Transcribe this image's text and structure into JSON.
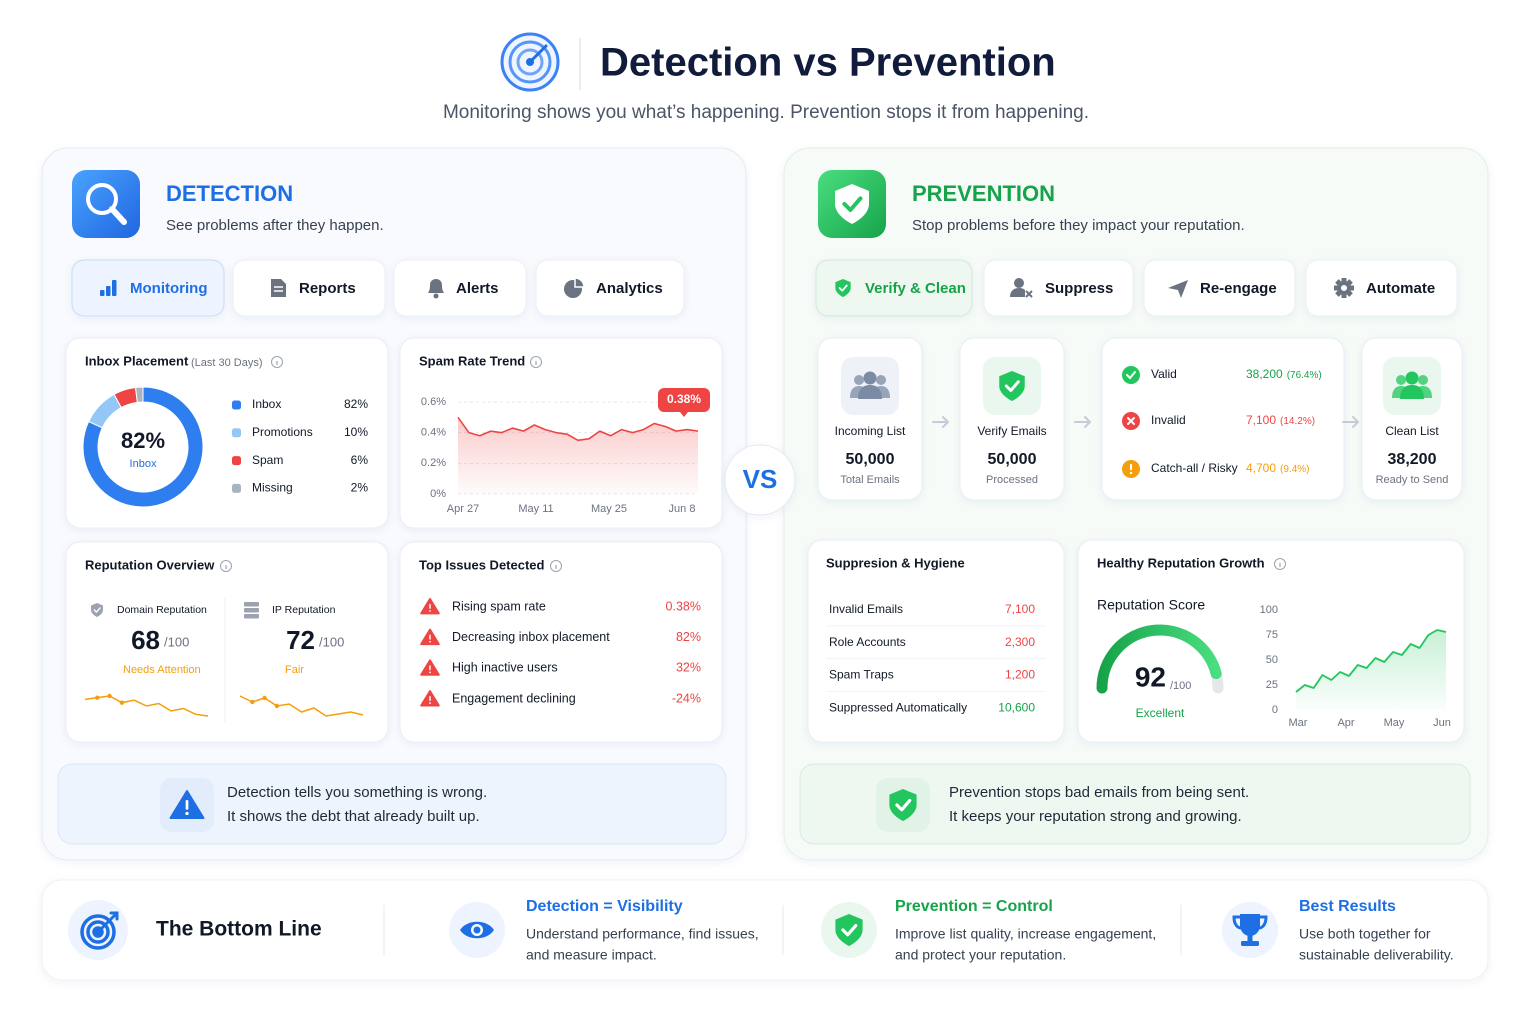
{
  "header": {
    "title": "Detection vs Prevention",
    "subtitle": "Monitoring shows you what’s happening. Prevention stops it from happening."
  },
  "vs": "VS",
  "detection": {
    "title": "DETECTION",
    "subtitle": "See problems after they happen.",
    "tabs": [
      "Monitoring",
      "Reports",
      "Alerts",
      "Analytics"
    ],
    "inbox_placement": {
      "type": "pie",
      "title": "Inbox Placement",
      "period": "(Last 30 Days)",
      "center_label": "Inbox",
      "categories": [
        "Inbox",
        "Promotions",
        "Spam",
        "Missing"
      ],
      "values": [
        82,
        10,
        6,
        2
      ],
      "value_labels": [
        "82%",
        "10%",
        "6%",
        "2%"
      ],
      "colors": [
        "#2f7ef0",
        "#93c8f6",
        "#ef4444",
        "#a8b3c4"
      ]
    },
    "spam_trend": {
      "type": "line",
      "title": "Spam Rate Trend",
      "x_labels": [
        "Apr 27",
        "May 11",
        "May 25",
        "Jun 8"
      ],
      "values": [
        0.5,
        0.4,
        0.38,
        0.41,
        0.4,
        0.43,
        0.41,
        0.45,
        0.42,
        0.4,
        0.39,
        0.35,
        0.36,
        0.41,
        0.38,
        0.42,
        0.4,
        0.42,
        0.46,
        0.44,
        0.41,
        0.42,
        0.41
      ],
      "color": "#ef4444",
      "ylim": [
        0,
        0.6
      ],
      "yticks": [
        {
          "value": 0,
          "label": "0%"
        },
        {
          "value": 0.2,
          "label": "0.2%"
        },
        {
          "value": 0.4,
          "label": "0.4%"
        },
        {
          "value": 0.6,
          "label": "0.6%"
        }
      ],
      "callout": "0.38%"
    },
    "reputation": {
      "title": "Reputation Overview",
      "items": [
        {
          "name": "Domain Reputation",
          "score": 68,
          "max": "/100",
          "status": "Needs Attention",
          "trend": [
            5,
            5.2,
            5.4,
            4.6,
            4.9,
            4.2,
            4.5,
            3.6,
            3.9,
            3.2,
            3
          ]
        },
        {
          "name": "IP Reputation",
          "score": 72,
          "max": "/100",
          "status": "Fair",
          "trend": [
            5.4,
            4.8,
            5.2,
            4.4,
            4.6,
            3.8,
            4.2,
            3.4,
            3.6,
            3.8,
            3.5
          ]
        }
      ]
    },
    "issues": {
      "title": "Top Issues Detected",
      "items": [
        {
          "name": "Rising spam rate",
          "value": "0.38%"
        },
        {
          "name": "Decreasing inbox placement",
          "value": "82%"
        },
        {
          "name": "High inactive users",
          "value": "32%"
        },
        {
          "name": "Engagement declining",
          "value": "-24%"
        }
      ]
    },
    "note": [
      "Detection tells you something is wrong.",
      "It shows the debt that already built up."
    ]
  },
  "prevention": {
    "title": "PREVENTION",
    "subtitle": "Stop problems before they impact your reputation.",
    "tabs": [
      "Verify & Clean",
      "Suppress",
      "Re-engage",
      "Automate"
    ],
    "flow": [
      {
        "label": "Incoming List",
        "value": "50,000",
        "caption": "Total Emails"
      },
      {
        "label": "Verify Emails",
        "value": "50,000",
        "caption": "Processed"
      }
    ],
    "results": [
      {
        "name": "Valid",
        "value": "38,200",
        "share": "(76.4%)"
      },
      {
        "name": "Invalid",
        "value": "7,100",
        "share": "(14.2%)"
      },
      {
        "name": "Catch-all / Risky",
        "value": "4,700",
        "share": "(9.4%)"
      }
    ],
    "clean": {
      "label": "Clean List",
      "value": "38,200",
      "caption": "Ready to Send"
    },
    "suppression": {
      "title": "Suppresion & Hygiene",
      "rows": [
        {
          "name": "Invalid Emails",
          "value": "7,100"
        },
        {
          "name": "Role Accounts",
          "value": "2,300"
        },
        {
          "name": "Spam Traps",
          "value": "1,200"
        },
        {
          "name": "Suppressed Automatically",
          "value": "10,600"
        }
      ]
    },
    "growth": {
      "title": "Healthy Reputation Growth",
      "score_title": "Reputation Score",
      "score": 92,
      "max": "/100",
      "gauge_lim": [
        0,
        100
      ],
      "status": "Excellent",
      "chart": {
        "type": "line",
        "x_labels": [
          "Mar",
          "Apr",
          "May",
          "Jun"
        ],
        "values": [
          18,
          25,
          22,
          35,
          30,
          38,
          34,
          45,
          42,
          52,
          48,
          58,
          55,
          66,
          62,
          75,
          80,
          78
        ],
        "color": "#22c55e",
        "ylim": [
          0,
          100
        ],
        "yticks": [
          0,
          25,
          50,
          75,
          100
        ]
      }
    },
    "note": [
      "Prevention stops bad emails from being sent.",
      "It keeps your reputation strong and growing."
    ]
  },
  "bottom": {
    "title": "The Bottom Line",
    "items": [
      {
        "title": "Detection = Visibility",
        "lines": [
          "Understand performance, find issues,",
          "and measure impact."
        ]
      },
      {
        "title": "Prevention = Control",
        "lines": [
          "Improve list quality, increase engagement,",
          "and protect your reputation."
        ]
      },
      {
        "title": "Best Results",
        "lines": [
          "Use both together for",
          "sustainable deliverability."
        ]
      }
    ]
  }
}
